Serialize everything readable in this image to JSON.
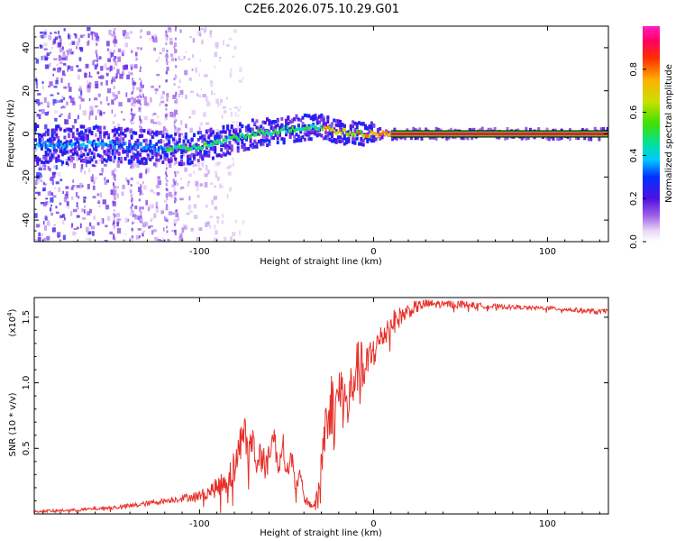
{
  "title": "C2E6.2026.075.10.29.G01",
  "chart_data": [
    {
      "type": "heatmap",
      "title": "C2E6.2026.075.10.29.G01",
      "xlabel": "Height of straight line (km)",
      "ylabel": "Frequency (Hz)",
      "xlim": [
        -195,
        135
      ],
      "ylim": [
        -50,
        50
      ],
      "xticks": [
        -100,
        0,
        100
      ],
      "yticks": [
        -40,
        -20,
        0,
        20,
        40
      ],
      "colorbar": {
        "label": "Normalized spectral amplitude",
        "range": [
          0,
          1
        ],
        "ticks": [
          0.0,
          0.2,
          0.4,
          0.6,
          0.8
        ],
        "tick_labels": [
          "0.0",
          "0.2",
          "0.4",
          "0.6",
          "0.8"
        ]
      },
      "ridge": {
        "x": [
          -195,
          -180,
          -165,
          -150,
          -135,
          -120,
          -110,
          -100,
          -90,
          -80,
          -70,
          -60,
          -50,
          -40,
          -30,
          -20,
          -10,
          0,
          10,
          20,
          40,
          60,
          80,
          100,
          120,
          135
        ],
        "y": [
          -5,
          -5,
          -5,
          -5,
          -6,
          -7,
          -7,
          -6,
          -4,
          -2,
          0,
          1,
          2,
          3,
          3,
          1,
          0,
          0,
          0,
          0,
          0,
          0,
          0,
          0,
          0,
          0
        ]
      },
      "noise_band": {
        "x_start": -195,
        "x_end": -100,
        "line_start": 10
      }
    },
    {
      "type": "line",
      "xlabel": "Height of straight line (km)",
      "ylabel": "SNR (10 * v/v)",
      "y_scale_label": "(x10",
      "y_scale_exp": "4",
      "y_scale_close": ")",
      "xlim": [
        -195,
        135
      ],
      "ylim": [
        0,
        1.65
      ],
      "xticks": [
        -100,
        0,
        100
      ],
      "yticks": [
        0.5,
        1.0,
        1.5
      ],
      "ytick_labels": [
        "0.5",
        "1.0",
        "1.5"
      ],
      "color": "#e8302a",
      "series": {
        "x": [
          -195,
          -170,
          -150,
          -140,
          -130,
          -120,
          -110,
          -100,
          -95,
          -90,
          -85,
          -80,
          -77,
          -75,
          -72,
          -70,
          -67,
          -65,
          -62,
          -60,
          -57,
          -55,
          -52,
          -50,
          -47,
          -45,
          -42,
          -40,
          -37,
          -35,
          -32,
          -30,
          -28,
          -26,
          -24,
          -22,
          -20,
          -18,
          -15,
          -12,
          -10,
          -8,
          -5,
          -2,
          0,
          3,
          5,
          10,
          15,
          20,
          25,
          30,
          40,
          50,
          60,
          70,
          80,
          90,
          100,
          110,
          120,
          130,
          135
        ],
        "y": [
          0.02,
          0.03,
          0.05,
          0.06,
          0.08,
          0.1,
          0.12,
          0.14,
          0.17,
          0.2,
          0.25,
          0.35,
          0.5,
          0.7,
          0.45,
          0.6,
          0.35,
          0.55,
          0.3,
          0.5,
          0.6,
          0.35,
          0.55,
          0.3,
          0.45,
          0.2,
          0.3,
          0.12,
          0.08,
          0.06,
          0.1,
          0.4,
          0.65,
          0.8,
          0.85,
          0.75,
          0.95,
          0.9,
          0.8,
          1.0,
          1.1,
          1.15,
          1.05,
          1.2,
          1.25,
          1.3,
          1.35,
          1.45,
          1.5,
          1.55,
          1.58,
          1.6,
          1.6,
          1.6,
          1.59,
          1.58,
          1.58,
          1.57,
          1.57,
          1.56,
          1.55,
          1.54,
          1.55
        ],
        "jitter": [
          0.01,
          0.01,
          0.015,
          0.02,
          0.02,
          0.02,
          0.03,
          0.04,
          0.05,
          0.08,
          0.1,
          0.15,
          0.15,
          0.15,
          0.15,
          0.15,
          0.12,
          0.12,
          0.12,
          0.12,
          0.1,
          0.1,
          0.08,
          0.08,
          0.08,
          0.06,
          0.05,
          0.04,
          0.03,
          0.03,
          0.1,
          0.2,
          0.25,
          0.25,
          0.25,
          0.25,
          0.25,
          0.25,
          0.22,
          0.22,
          0.2,
          0.2,
          0.2,
          0.15,
          0.15,
          0.12,
          0.12,
          0.1,
          0.08,
          0.06,
          0.05,
          0.04,
          0.03,
          0.03,
          0.02,
          0.02,
          0.015,
          0.015,
          0.015,
          0.015,
          0.02,
          0.02,
          0.02
        ]
      }
    }
  ]
}
